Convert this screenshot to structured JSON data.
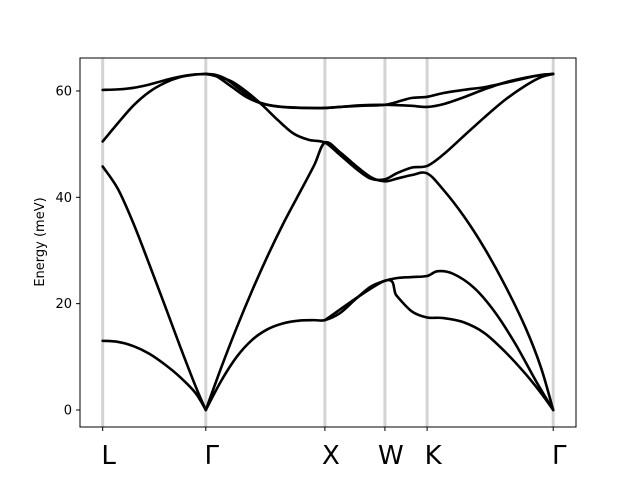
{
  "chart_data": {
    "type": "line",
    "title": "",
    "xlabel": "",
    "ylabel": "Energy (meV)",
    "ylim": [
      -3.2,
      66.2
    ],
    "yticks": [
      0,
      20,
      40,
      60
    ],
    "grid": false,
    "legend": "none",
    "kpoints": [
      {
        "label": "L",
        "x": 0.0
      },
      {
        "label": "Γ",
        "x": 1.0
      },
      {
        "label": "X",
        "x": 2.155
      },
      {
        "label": "W",
        "x": 2.737
      },
      {
        "label": "K",
        "x": 3.146
      },
      {
        "label": "Γ",
        "x": 4.369
      }
    ],
    "xlim": [
      -0.22,
      4.59
    ],
    "line_color": "#000000",
    "kline_color": "#d3d3d3",
    "series": [
      {
        "values": [
          [
            0,
            13.0
          ],
          [
            0.15,
            12.8
          ],
          [
            0.3,
            12.0
          ],
          [
            0.45,
            10.6
          ],
          [
            0.6,
            8.6
          ],
          [
            0.75,
            6.2
          ],
          [
            0.9,
            3.2
          ],
          [
            1.0,
            0
          ]
        ]
      },
      {
        "values": [
          [
            0,
            45.8
          ],
          [
            0.15,
            41.5
          ],
          [
            0.3,
            35.0
          ],
          [
            0.45,
            27.5
          ],
          [
            0.6,
            19.8
          ],
          [
            0.75,
            12.0
          ],
          [
            0.9,
            4.5
          ],
          [
            1.0,
            0
          ]
        ]
      },
      {
        "values": [
          [
            0,
            50.5
          ],
          [
            0.15,
            54.0
          ],
          [
            0.3,
            57.3
          ],
          [
            0.45,
            59.8
          ],
          [
            0.6,
            61.5
          ],
          [
            0.75,
            62.6
          ],
          [
            0.9,
            63.1
          ],
          [
            1.0,
            63.2
          ]
        ]
      },
      {
        "values": [
          [
            0,
            60.2
          ],
          [
            0.15,
            60.3
          ],
          [
            0.3,
            60.6
          ],
          [
            0.45,
            61.2
          ],
          [
            0.6,
            62.0
          ],
          [
            0.75,
            62.7
          ],
          [
            0.9,
            63.1
          ],
          [
            1.0,
            63.2
          ]
        ]
      },
      {
        "values": [
          [
            1.0,
            0
          ],
          [
            1.15,
            5.5
          ],
          [
            1.3,
            10.0
          ],
          [
            1.45,
            13.2
          ],
          [
            1.6,
            15.2
          ],
          [
            1.75,
            16.3
          ],
          [
            1.9,
            16.8
          ],
          [
            2.05,
            16.9
          ],
          [
            2.155,
            16.9
          ],
          [
            2.3,
            18.2
          ],
          [
            2.45,
            20.8
          ],
          [
            2.6,
            23.2
          ],
          [
            2.737,
            24.3
          ],
          [
            2.85,
            24.8
          ],
          [
            3.0,
            25.0
          ],
          [
            3.146,
            25.2
          ],
          [
            3.25,
            26.1
          ],
          [
            3.4,
            25.6
          ],
          [
            3.6,
            23.0
          ],
          [
            3.8,
            18.5
          ],
          [
            4.0,
            12.5
          ],
          [
            4.2,
            5.5
          ],
          [
            4.369,
            0
          ]
        ]
      },
      {
        "values": [
          [
            1.0,
            0
          ],
          [
            1.15,
            8.0
          ],
          [
            1.3,
            15.5
          ],
          [
            1.45,
            22.5
          ],
          [
            1.6,
            29.0
          ],
          [
            1.75,
            35.0
          ],
          [
            1.9,
            40.5
          ],
          [
            2.05,
            46.0
          ],
          [
            2.155,
            50.3
          ],
          [
            2.3,
            48.5
          ],
          [
            2.45,
            46.0
          ],
          [
            2.6,
            43.8
          ],
          [
            2.737,
            43.0
          ],
          [
            2.85,
            43.5
          ],
          [
            3.0,
            44.2
          ],
          [
            3.146,
            44.5
          ],
          [
            3.3,
            41.5
          ],
          [
            3.5,
            36.5
          ],
          [
            3.7,
            30.5
          ],
          [
            3.9,
            23.5
          ],
          [
            4.1,
            15.5
          ],
          [
            4.25,
            8.0
          ],
          [
            4.369,
            0
          ]
        ]
      },
      {
        "values": [
          [
            2.155,
            16.9
          ],
          [
            2.737,
            24.3
          ],
          [
            2.85,
            21.5
          ],
          [
            3.0,
            18.5
          ],
          [
            3.146,
            17.4
          ],
          [
            3.3,
            17.3
          ],
          [
            3.5,
            16.5
          ],
          [
            3.7,
            14.5
          ],
          [
            3.9,
            11.0
          ],
          [
            4.1,
            6.8
          ],
          [
            4.25,
            3.2
          ],
          [
            4.369,
            0
          ]
        ]
      },
      {
        "values": [
          [
            1.0,
            63.2
          ],
          [
            1.1,
            62.8
          ],
          [
            1.25,
            61.8
          ],
          [
            1.4,
            59.8
          ],
          [
            1.55,
            57.3
          ],
          [
            1.7,
            54.5
          ],
          [
            1.85,
            52.0
          ],
          [
            2.0,
            50.8
          ],
          [
            2.155,
            50.3
          ],
          [
            2.3,
            48.0
          ],
          [
            2.45,
            45.5
          ],
          [
            2.6,
            43.5
          ],
          [
            2.737,
            43.4
          ],
          [
            2.85,
            44.5
          ],
          [
            3.0,
            45.6
          ],
          [
            3.146,
            45.9
          ],
          [
            3.3,
            48.0
          ],
          [
            3.5,
            51.5
          ],
          [
            3.7,
            55.0
          ],
          [
            3.9,
            58.3
          ],
          [
            4.1,
            61.0
          ],
          [
            4.25,
            62.6
          ],
          [
            4.369,
            63.2
          ]
        ]
      },
      {
        "values": [
          [
            1.0,
            63.2
          ],
          [
            1.1,
            62.8
          ],
          [
            1.25,
            60.8
          ],
          [
            1.4,
            58.8
          ],
          [
            1.55,
            57.6
          ],
          [
            1.7,
            57.1
          ],
          [
            1.85,
            56.9
          ],
          [
            2.0,
            56.8
          ],
          [
            2.155,
            56.8
          ],
          [
            2.3,
            57.0
          ],
          [
            2.5,
            57.3
          ],
          [
            2.737,
            57.4
          ],
          [
            2.9,
            57.3
          ],
          [
            3.0,
            57.2
          ],
          [
            3.146,
            57.0
          ],
          [
            3.3,
            57.5
          ],
          [
            3.5,
            58.8
          ],
          [
            3.7,
            60.3
          ],
          [
            3.9,
            61.6
          ],
          [
            4.1,
            62.5
          ],
          [
            4.25,
            63.0
          ],
          [
            4.369,
            63.2
          ]
        ]
      },
      {
        "values": [
          [
            1.0,
            63.2
          ],
          [
            1.1,
            63.0
          ],
          [
            1.2,
            62.2
          ],
          [
            1.35,
            60.0
          ],
          [
            1.5,
            58.0
          ],
          [
            1.65,
            57.2
          ],
          [
            1.8,
            56.9
          ],
          [
            2.0,
            56.8
          ],
          [
            2.155,
            56.8
          ],
          [
            2.3,
            57.0
          ],
          [
            2.5,
            57.2
          ],
          [
            2.737,
            57.4
          ],
          [
            2.9,
            58.2
          ],
          [
            3.0,
            58.7
          ],
          [
            3.146,
            58.9
          ],
          [
            3.3,
            59.6
          ],
          [
            3.5,
            60.2
          ],
          [
            3.7,
            60.7
          ],
          [
            3.9,
            61.5
          ],
          [
            4.1,
            62.4
          ],
          [
            4.25,
            63.0
          ],
          [
            4.369,
            63.2
          ]
        ]
      }
    ]
  }
}
